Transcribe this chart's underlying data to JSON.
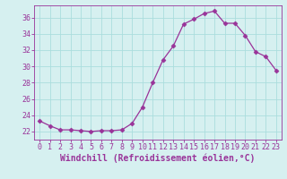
{
  "x": [
    0,
    1,
    2,
    3,
    4,
    5,
    6,
    7,
    8,
    9,
    10,
    11,
    12,
    13,
    14,
    15,
    16,
    17,
    18,
    19,
    20,
    21,
    22,
    23
  ],
  "y": [
    23.3,
    22.7,
    22.2,
    22.2,
    22.1,
    22.0,
    22.1,
    22.1,
    22.2,
    23.0,
    25.0,
    28.0,
    30.8,
    32.5,
    35.2,
    35.8,
    36.5,
    36.8,
    35.3,
    35.3,
    33.8,
    31.8,
    31.2,
    29.5
  ],
  "xlim": [
    -0.5,
    23.5
  ],
  "ylim": [
    21.0,
    37.5
  ],
  "yticks": [
    22,
    24,
    26,
    28,
    30,
    32,
    34,
    36
  ],
  "xticks": [
    0,
    1,
    2,
    3,
    4,
    5,
    6,
    7,
    8,
    9,
    10,
    11,
    12,
    13,
    14,
    15,
    16,
    17,
    18,
    19,
    20,
    21,
    22,
    23
  ],
  "xlabel": "Windchill (Refroidissement éolien,°C)",
  "line_color": "#993399",
  "marker": "D",
  "marker_size": 2.5,
  "bg_color": "#d6f0f0",
  "grid_color": "#aadddd",
  "tick_fontsize": 6,
  "xlabel_fontsize": 7
}
